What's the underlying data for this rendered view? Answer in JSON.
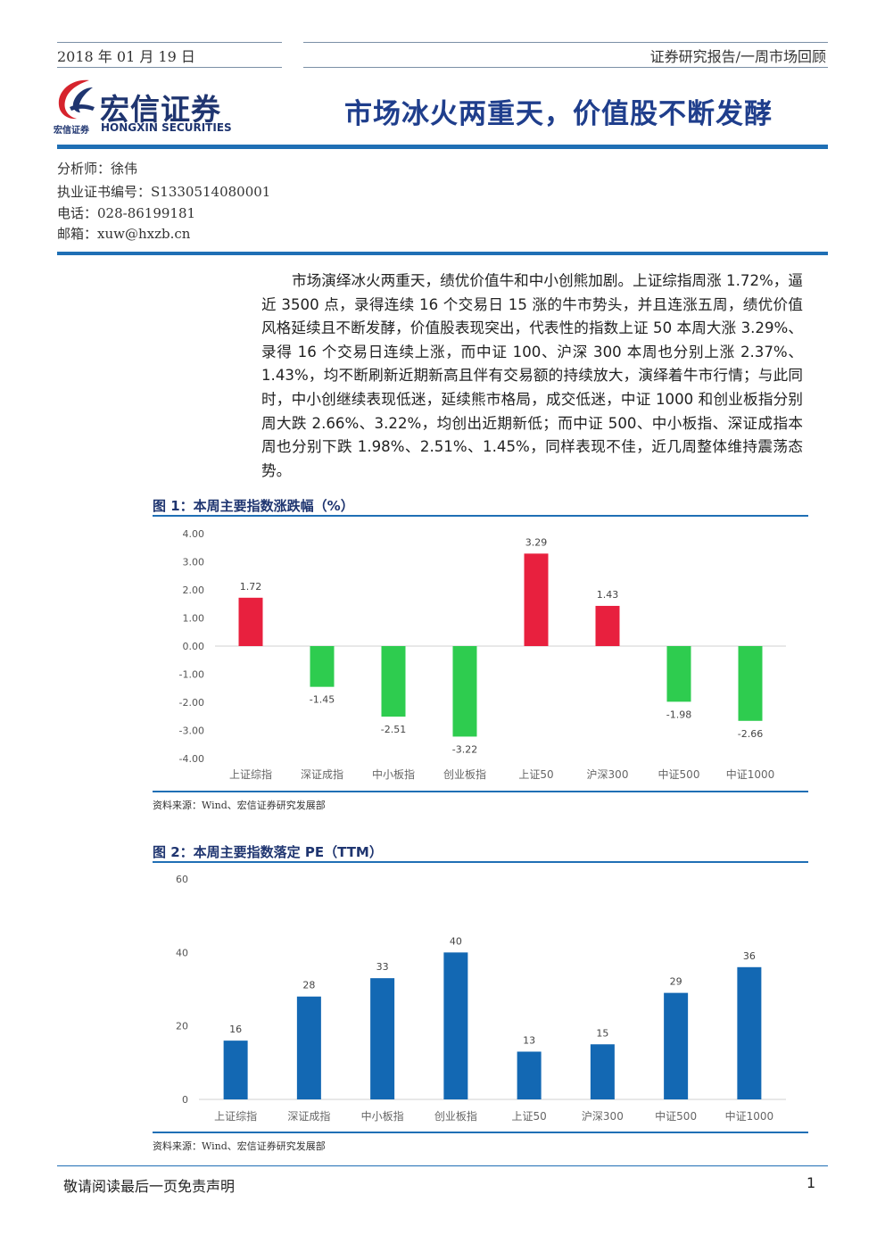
{
  "header": {
    "date": "2018 年 01 月 19 日",
    "report_type": "证券研究报告/一周市场回顾"
  },
  "logo": {
    "name_cn": "宏信证券",
    "name_cn_small": "宏信证券",
    "name_en": "HONGXIN SECURITIES",
    "icon": "hongxin-swoosh-logo"
  },
  "title": "市场冰火两重天，价值股不断发酵",
  "analyst": {
    "name": "分析师：徐伟",
    "license": "执业证书编号：S1330514080001",
    "phone": "电话：028-86199181",
    "email": "邮箱：xuw@hxzb.cn"
  },
  "summary": "市场演绎冰火两重天，绩优价值牛和中小创熊加剧。上证综指周涨 1.72%，逼近 3500 点，录得连续 16 个交易日 15 涨的牛市势头，并且连涨五周，绩优价值风格延续且不断发酵，价值股表现突出，代表性的指数上证 50 本周大涨 3.29%、录得 16 个交易日连续上涨，而中证 100、沪深 300 本周也分别上涨 2.37%、1.43%，均不断刷新近期新高且伴有交易额的持续放大，演绎着牛市行情；与此同时，中小创继续表现低迷，延续熊市格局，成交低迷，中证 1000 和创业板指分别周大跌 2.66%、3.22%，均创出近期新低；而中证 500、中小板指、深证成指本周也分别下跌 1.98%、2.51%、1.45%，同样表现不佳，近几周整体维持震荡态势。",
  "figures": {
    "fig1": {
      "title": "图 1：本周主要指数涨跌幅（%）",
      "source": "资料来源：Wind、宏信证券研究发展部"
    },
    "fig2": {
      "title": "图 2：本周主要指数落定 PE（TTM）",
      "source": "资料来源：Wind、宏信证券研究发展部"
    }
  },
  "colors": {
    "up": "#e8203e",
    "down": "#2ecc4f",
    "pe": "#1368b3",
    "accent": "#1f6fb5"
  },
  "chart_data": [
    {
      "type": "bar",
      "categories": [
        "上证综指",
        "深证成指",
        "中小板指",
        "创业板指",
        "上证50",
        "沪深300",
        "中证500",
        "中证1000"
      ],
      "values": [
        1.72,
        -1.45,
        -2.51,
        -3.22,
        3.29,
        1.43,
        -1.98,
        -2.66
      ],
      "data_labels": [
        "1.72",
        "-1.45",
        "-2.51",
        "-3.22",
        "3.29",
        "1.43",
        "-1.98",
        "-2.66"
      ],
      "ylim": [
        -4,
        4
      ],
      "yticks": [
        "4.00",
        "3.00",
        "2.00",
        "1.00",
        "0.00",
        "-1.00",
        "-2.00",
        "-3.00",
        "-4.00"
      ],
      "ytick_values": [
        4,
        3,
        2,
        1,
        0,
        -1,
        -2,
        -3,
        -4
      ],
      "grid": false
    },
    {
      "type": "bar",
      "categories": [
        "上证综指",
        "深证成指",
        "中小板指",
        "创业板指",
        "上证50",
        "沪深300",
        "中证500",
        "中证1000"
      ],
      "values": [
        16,
        28,
        33,
        40,
        13,
        15,
        29,
        36
      ],
      "data_labels": [
        "16",
        "28",
        "33",
        "40",
        "13",
        "15",
        "29",
        "36"
      ],
      "ylim": [
        0,
        60
      ],
      "yticks": [
        "60",
        "40",
        "20",
        "0"
      ],
      "ytick_values": [
        60,
        40,
        20,
        0
      ],
      "grid": false
    }
  ],
  "footer": {
    "disclaimer": "敬请阅读最后一页免责声明",
    "page": "1"
  }
}
